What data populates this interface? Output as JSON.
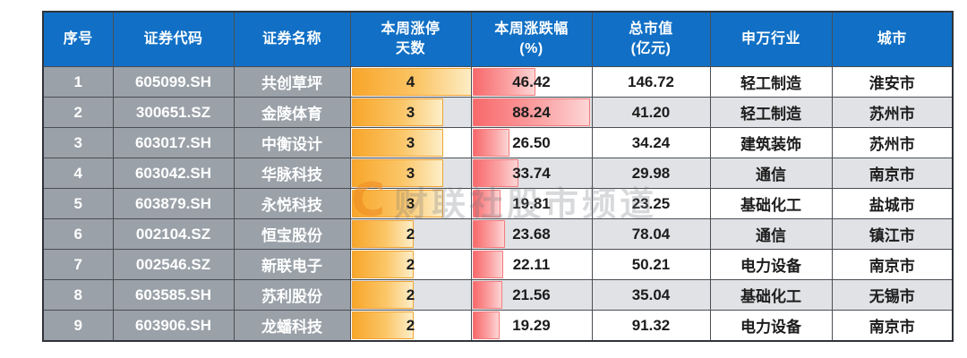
{
  "chart_data": {
    "type": "table",
    "columns": [
      {
        "key": "index",
        "label": "序号"
      },
      {
        "key": "code",
        "label": "证券代码"
      },
      {
        "key": "name",
        "label": "证券名称"
      },
      {
        "key": "limit_up_days",
        "label": "本周涨停\n天数"
      },
      {
        "key": "weekly_change_pct",
        "label": "本周涨跌幅\n(%)"
      },
      {
        "key": "market_cap",
        "label": "总市值\n(亿元)"
      },
      {
        "key": "industry",
        "label": "申万行业"
      },
      {
        "key": "city",
        "label": "城市"
      }
    ],
    "rows": [
      {
        "index": "1",
        "code": "605099.SH",
        "name": "共创草坪",
        "limit_up_days": 4,
        "weekly_change_pct": "46.42",
        "market_cap": "146.72",
        "industry": "轻工制造",
        "city": "淮安市"
      },
      {
        "index": "2",
        "code": "300651.SZ",
        "name": "金陵体育",
        "limit_up_days": 3,
        "weekly_change_pct": "88.24",
        "market_cap": "41.20",
        "industry": "轻工制造",
        "city": "苏州市"
      },
      {
        "index": "3",
        "code": "603017.SH",
        "name": "中衡设计",
        "limit_up_days": 3,
        "weekly_change_pct": "26.50",
        "market_cap": "34.24",
        "industry": "建筑装饰",
        "city": "苏州市"
      },
      {
        "index": "4",
        "code": "603042.SH",
        "name": "华脉科技",
        "limit_up_days": 3,
        "weekly_change_pct": "33.74",
        "market_cap": "29.98",
        "industry": "通信",
        "city": "南京市"
      },
      {
        "index": "5",
        "code": "603879.SH",
        "name": "永悦科技",
        "limit_up_days": 3,
        "weekly_change_pct": "19.81",
        "market_cap": "23.25",
        "industry": "基础化工",
        "city": "盐城市"
      },
      {
        "index": "6",
        "code": "002104.SZ",
        "name": "恒宝股份",
        "limit_up_days": 2,
        "weekly_change_pct": "23.68",
        "market_cap": "78.04",
        "industry": "通信",
        "city": "镇江市"
      },
      {
        "index": "7",
        "code": "002546.SZ",
        "name": "新联电子",
        "limit_up_days": 2,
        "weekly_change_pct": "22.11",
        "market_cap": "50.21",
        "industry": "电力设备",
        "city": "南京市"
      },
      {
        "index": "8",
        "code": "603585.SH",
        "name": "苏利股份",
        "limit_up_days": 2,
        "weekly_change_pct": "21.56",
        "market_cap": "35.04",
        "industry": "基础化工",
        "city": "无锡市"
      },
      {
        "index": "9",
        "code": "603906.SH",
        "name": "龙蟠科技",
        "limit_up_days": 2,
        "weekly_change_pct": "19.29",
        "market_cap": "91.32",
        "industry": "电力设备",
        "city": "南京市"
      }
    ],
    "bars": {
      "limit_up_days_max": 4,
      "weekly_change_max": 88.24,
      "orange_bar_start": "#F8A62A",
      "orange_bar_end": "#FDEEC8",
      "red_bar_start": "#F8696B",
      "red_bar_end": "#FCD6D6"
    },
    "layout": {
      "header_bg": "#1170C6",
      "header_text": "#FFFFFF",
      "label_column_bg": "#9AA1A8",
      "alt_row_bg": "#E0E2E5",
      "grid_color": "#4A4E54"
    }
  },
  "watermark": {
    "logo_glyph": "C",
    "text": "财联社股市频道"
  }
}
